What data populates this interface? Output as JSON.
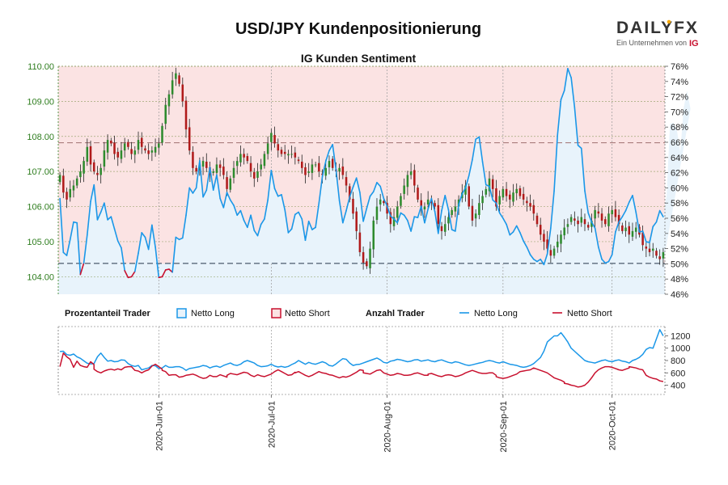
{
  "header": {
    "title": "USD/JPY Kundenpositionierung",
    "subtitle": "IG Kunden Sentiment"
  },
  "logo": {
    "brand_left": "DAILY",
    "brand_right": "FX",
    "tagline": "Ein Unternehmen von",
    "ig": "IG",
    "accent": "#f7a600"
  },
  "colors": {
    "long": "#1a97e8",
    "short": "#c8102e",
    "up_candle": "#2e8b2e",
    "down_candle": "#b01a1a",
    "wick": "#222222",
    "long_fill": "#e8f3fb",
    "short_fill": "#fbe3e3",
    "axis_left": "#2e7d1e"
  },
  "legend": {
    "group1": "Prozentanteil Trader",
    "net_long_pct": "Netto Long",
    "net_short_pct": "Netto Short",
    "group2": "Anzahl Trader",
    "net_long_cnt": "Netto Long",
    "net_short_cnt": "Netto Short"
  },
  "chart_data": [
    {
      "type": "candlestick",
      "title": "IG Kunden Sentiment",
      "ylabel_left": "USD/JPY",
      "ylim_left": [
        103.5,
        110.0
      ],
      "yticks_left": [
        "110.00",
        "109.00",
        "108.00",
        "107.00",
        "106.00",
        "105.00",
        "104.00"
      ],
      "ylim_right": [
        46,
        76
      ],
      "yticks_right": [
        "76%",
        "74%",
        "72%",
        "70%",
        "68%",
        "66%",
        "64%",
        "62%",
        "60%",
        "58%",
        "56%",
        "54%",
        "52%",
        "50%",
        "48%",
        "46%"
      ],
      "reference_lines": {
        "price_dashed": 107.82,
        "price_level": 104.38
      },
      "close_series": [
        106.9,
        106.4,
        106.2,
        106.5,
        106.6,
        106.8,
        107.0,
        107.3,
        107.7,
        107.2,
        107.0,
        106.9,
        107.1,
        107.6,
        107.9,
        107.8,
        107.5,
        107.4,
        107.6,
        107.8,
        107.7,
        107.5,
        107.6,
        107.9,
        107.7,
        107.6,
        107.5,
        107.6,
        107.7,
        107.8,
        108.3,
        108.9,
        109.2,
        109.6,
        109.8,
        109.5,
        109.0,
        108.2,
        107.6,
        107.1,
        107.0,
        107.2,
        107.3,
        107.1,
        106.9,
        107.0,
        107.2,
        107.1,
        106.9,
        106.5,
        106.8,
        107.1,
        107.3,
        107.5,
        107.4,
        107.3,
        107.0,
        106.8,
        107.0,
        107.2,
        107.5,
        107.8,
        108.1,
        107.8,
        107.6,
        107.5,
        107.5,
        107.5,
        107.5,
        107.4,
        107.3,
        107.1,
        106.9,
        107.0,
        107.2,
        107.2,
        107.0,
        106.9,
        107.1,
        107.3,
        107.1,
        107.0,
        107.1,
        106.9,
        106.6,
        106.2,
        105.8,
        105.3,
        104.7,
        104.4,
        104.3,
        104.8,
        105.6,
        106.0,
        106.2,
        106.1,
        105.8,
        105.5,
        105.7,
        106.0,
        106.3,
        106.6,
        106.9,
        107.0,
        106.6,
        106.2,
        105.9,
        106.0,
        106.2,
        106.1,
        106.0,
        105.5,
        105.3,
        105.5,
        105.7,
        105.9,
        106.0,
        106.2,
        106.4,
        106.6,
        106.0,
        105.6,
        105.8,
        106.1,
        106.3,
        106.5,
        106.8,
        106.5,
        106.0,
        106.3,
        106.5,
        106.3,
        106.2,
        106.4,
        106.5,
        106.3,
        106.2,
        106.1,
        106.0,
        105.8,
        105.5,
        105.2,
        105.0,
        104.8,
        104.6,
        104.8,
        105.0,
        105.2,
        105.4,
        105.5,
        105.7,
        105.6,
        105.5,
        105.7,
        105.5,
        105.4,
        105.6,
        105.9,
        105.8,
        105.6,
        105.5,
        105.8,
        105.9,
        105.7,
        105.5,
        105.3,
        105.4,
        105.2,
        105.3,
        105.4,
        105.2,
        104.9,
        104.8,
        104.7,
        104.8,
        104.6,
        104.5,
        104.7
      ],
      "net_long_pct_series": [
        58.6,
        51.5,
        51.1,
        53.2,
        55.5,
        55.4,
        48.6,
        50.1,
        53.8,
        58.2,
        60.4,
        55.8,
        56.8,
        58.0,
        55.8,
        56.2,
        54.6,
        53.0,
        52.1,
        49.1,
        48.2,
        48.3,
        49.0,
        51.4,
        54.1,
        53.5,
        51.9,
        55.1,
        52.2,
        48.2,
        48.3,
        49.2,
        49.3,
        48.9,
        53.5,
        53.2,
        53.4,
        56.4,
        60.0,
        59.3,
        60.0,
        63.6,
        58.8,
        59.7,
        62.7,
        59.7,
        61.7,
        58.6,
        57.4,
        59.4,
        58.4,
        57.7,
        56.4,
        57.0,
        55.7,
        54.8,
        56.4,
        54.4,
        53.7,
        55.2,
        55.9,
        58.4,
        62.3,
        59.9,
        58.9,
        59.1,
        57.1,
        54.1,
        54.6,
        56.5,
        56.8,
        55.9,
        53.1,
        55.6,
        54.5,
        54.8,
        58.0,
        61.5,
        63.5,
        64.9,
        65.7,
        62.4,
        58.3,
        55.4,
        57.0,
        58.8,
        60.1,
        61.3,
        59.4,
        55.6,
        57.3,
        58.9,
        59.5,
        60.7,
        60.2,
        58.6,
        57.6,
        56.3,
        55.9,
        55.4,
        56.7,
        56.4,
        55.7,
        54.3,
        56.2,
        56.1,
        57.6,
        55.4,
        57.2,
        58.6,
        56.9,
        54.0,
        57.0,
        59.0,
        57.1,
        54.5,
        54.3,
        57.8,
        59.2,
        60.0,
        61.6,
        63.7,
        66.4,
        66.7,
        63.4,
        60.4,
        60.2,
        58.4,
        58.0,
        56.7,
        56.0,
        55.2,
        53.8,
        54.2,
        55.0,
        54.1,
        53.0,
        52.2,
        51.2,
        50.6,
        50.3,
        50.6,
        49.9,
        51.3,
        54.7,
        59.6,
        67.0,
        71.6,
        72.8,
        75.7,
        74.5,
        70.6,
        65.6,
        65.2,
        59.6,
        56.7,
        55.5,
        54.7,
        52.2,
        50.6,
        50.1,
        50.3,
        51.2,
        54.2,
        55.5,
        56.2,
        57.0,
        58.1,
        59.0,
        56.8,
        54.2,
        54.3,
        52.9,
        52.8,
        54.9,
        55.5,
        57.0,
        56.2,
        59.0,
        68.4,
        68.6,
        67.7,
        64.7,
        70.5,
        72.8,
        70.4
      ],
      "xticks": [
        "2020-Jun-01",
        "2020-Jul-01",
        "2020-Aug-01",
        "2020-Sep-01",
        "2020-Oct-01"
      ]
    },
    {
      "type": "line",
      "title": "Anzahl Trader",
      "ylim": [
        250,
        1350
      ],
      "yticks": [
        "1200",
        "1000",
        "800",
        "600",
        "400"
      ],
      "series": [
        {
          "name": "Netto Long",
          "values": [
            945,
            950,
            895,
            885,
            905,
            860,
            835,
            795,
            755,
            745,
            750,
            860,
            920,
            850,
            790,
            800,
            780,
            785,
            810,
            805,
            750,
            720,
            705,
            720,
            650,
            665,
            680,
            720,
            715,
            670,
            680,
            720,
            690,
            690,
            700,
            700,
            680,
            640,
            670,
            680,
            690,
            700,
            720,
            710,
            680,
            700,
            710,
            690,
            720,
            740,
            760,
            730,
            720,
            740,
            780,
            800,
            780,
            760,
            720,
            700,
            705,
            715,
            740,
            710,
            695,
            705,
            690,
            705,
            735,
            760,
            800,
            770,
            740,
            770,
            750,
            740,
            760,
            780,
            760,
            720,
            710,
            745,
            790,
            830,
            820,
            760,
            720,
            735,
            740,
            760,
            780,
            800,
            820,
            840,
            810,
            770,
            760,
            790,
            800,
            820,
            810,
            795,
            780,
            790,
            810,
            815,
            790,
            800,
            810,
            790,
            780,
            800,
            810,
            790,
            770,
            760,
            780,
            770,
            750,
            730,
            720,
            730,
            745,
            760,
            770,
            790,
            800,
            790,
            770,
            760,
            780,
            760,
            740,
            730,
            720,
            700,
            690,
            700,
            720,
            750,
            800,
            850,
            950,
            1100,
            1150,
            1200,
            1200,
            1250,
            1180,
            1100,
            1000,
            950,
            900,
            850,
            800,
            780,
            770,
            760,
            780,
            800,
            810,
            790,
            780,
            800,
            810,
            790,
            780,
            760,
            800,
            820,
            850,
            900,
            980,
            1010,
            1000,
            1150,
            1300,
            1200
          ]
        },
        {
          "name": "Netto Short",
          "values": [
            700,
            920,
            860,
            820,
            690,
            790,
            720,
            700,
            690,
            780,
            735,
            660,
            620,
            600,
            630,
            650,
            660,
            645,
            665,
            650,
            690,
            700,
            700,
            640,
            630,
            600,
            630,
            650,
            710,
            740,
            700,
            660,
            640,
            620,
            560,
            570,
            570,
            530,
            540,
            560,
            570,
            580,
            560,
            530,
            510,
            520,
            560,
            540,
            540,
            570,
            550,
            530,
            560,
            590,
            580,
            570,
            590,
            610,
            600,
            560,
            540,
            570,
            550,
            540,
            560,
            580,
            620,
            650,
            620,
            590,
            560,
            570,
            610,
            600,
            620,
            590,
            560,
            540,
            560,
            590,
            620,
            600,
            590,
            570,
            560,
            540,
            520,
            540,
            530,
            550,
            580,
            610,
            650,
            640,
            600,
            590,
            580,
            610,
            640,
            650,
            600,
            580,
            560,
            570,
            590,
            580,
            560,
            560,
            570,
            590,
            600,
            580,
            560,
            560,
            580,
            590,
            570,
            550,
            540,
            560,
            570,
            560,
            540,
            550,
            570,
            600,
            620,
            640,
            620,
            600,
            590,
            590,
            600,
            600,
            560,
            540,
            520,
            510,
            520,
            540,
            560,
            580,
            620,
            630,
            640,
            650,
            680,
            660,
            640,
            620,
            600,
            560,
            520,
            500,
            480,
            450,
            430,
            420,
            400,
            390,
            370,
            380,
            400,
            450,
            520,
            600,
            650,
            680,
            700,
            700,
            690,
            670,
            650,
            640,
            660,
            680,
            700,
            690,
            680,
            660,
            650,
            560,
            530,
            510,
            500,
            470,
            460
          ]
        }
      ],
      "xticks": [
        "2020-Jun-01",
        "2020-Jul-01",
        "2020-Aug-01",
        "2020-Sep-01",
        "2020-Oct-01"
      ]
    }
  ]
}
